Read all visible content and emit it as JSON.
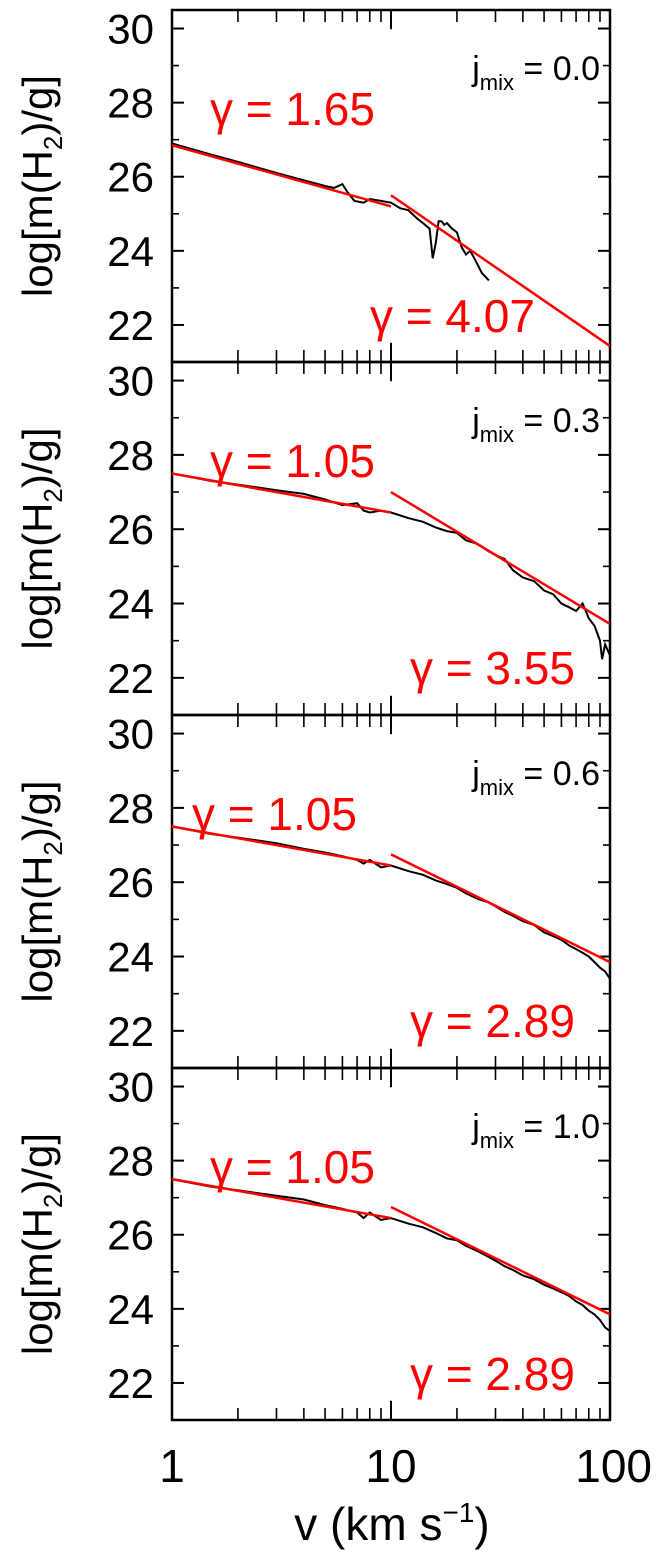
{
  "chart_data": {
    "type": "line",
    "xscale": "log",
    "xlim": [
      1,
      100
    ],
    "ylim": [
      21,
      30.5
    ],
    "xlabel": "v (km s",
    "xlabel_sup": "−1",
    "xlabel_end": ")",
    "x_ticks": [
      {
        "value": 1,
        "label": "1"
      },
      {
        "value": 10,
        "label": "10"
      },
      {
        "value": 100,
        "label": "100"
      }
    ],
    "y_ticks": [
      22,
      24,
      26,
      28,
      30
    ],
    "ylabel_parts": {
      "pre": "log[m(H",
      "sub": "2",
      "post": ")/g]"
    },
    "colors": {
      "data": "#000000",
      "fit": "#ff0000"
    },
    "panels": [
      {
        "jmix_label": "j",
        "jmix_sub": "mix",
        "jmix_value": " = 0.0",
        "fit_low": {
          "gamma_label": "γ = 1.65",
          "x": [
            1,
            10
          ],
          "y": [
            26.85,
            25.2
          ]
        },
        "fit_high": {
          "gamma_label": "γ = 4.07",
          "x": [
            10,
            100
          ],
          "y": [
            25.5,
            21.43
          ]
        },
        "series": [
          {
            "x": [
              1,
              1.5,
              2,
              3,
              4,
              5,
              5.5,
              6,
              6.3,
              6.8,
              7.5,
              8,
              9,
              10,
              11,
              12,
              13,
              14,
              15,
              15.5,
              16,
              16.5,
              17,
              17.5,
              18,
              19,
              20,
              21,
              22,
              23,
              24,
              25,
              26,
              27,
              28
            ],
            "y": [
              26.9,
              26.6,
              26.4,
              26.1,
              25.9,
              25.75,
              25.7,
              25.8,
              25.6,
              25.35,
              25.3,
              25.4,
              25.35,
              25.3,
              25.15,
              25.1,
              24.9,
              24.75,
              24.6,
              23.8,
              24.2,
              24.8,
              24.8,
              24.7,
              24.75,
              24.6,
              24.5,
              24.1,
              23.9,
              24.0,
              23.8,
              23.6,
              23.4,
              23.3,
              23.2
            ]
          }
        ]
      },
      {
        "jmix_label": "j",
        "jmix_sub": "mix",
        "jmix_value": " = 0.3",
        "fit_low": {
          "gamma_label": "γ = 1.05",
          "x": [
            1,
            10
          ],
          "y": [
            27.5,
            26.45
          ]
        },
        "fit_high": {
          "gamma_label": "γ = 3.55",
          "x": [
            10,
            100
          ],
          "y": [
            27.0,
            23.45
          ]
        },
        "series": [
          {
            "x": [
              1,
              1.5,
              2,
              3,
              4,
              5,
              6,
              7,
              7.5,
              8,
              9,
              10,
              12,
              14,
              16,
              18,
              20,
              22,
              25,
              28,
              30,
              33,
              36,
              40,
              45,
              50,
              55,
              60,
              65,
              70,
              75,
              80,
              85,
              90,
              92,
              95,
              100
            ],
            "y": [
              27.5,
              27.3,
              27.2,
              27.05,
              26.95,
              26.8,
              26.65,
              26.7,
              26.5,
              26.45,
              26.5,
              26.45,
              26.3,
              26.2,
              26.05,
              25.95,
              25.9,
              25.7,
              25.6,
              25.4,
              25.3,
              25.2,
              24.9,
              24.7,
              24.6,
              24.35,
              24.25,
              24.0,
              23.9,
              23.8,
              24.0,
              23.6,
              23.4,
              23.0,
              22.5,
              22.9,
              22.6
            ]
          }
        ]
      },
      {
        "jmix_label": "j",
        "jmix_sub": "mix",
        "jmix_value": " = 0.6",
        "fit_low": {
          "gamma_label": "γ = 1.05",
          "x": [
            1,
            10
          ],
          "y": [
            27.5,
            26.45
          ]
        },
        "fit_high": {
          "gamma_label": "γ = 2.89",
          "x": [
            10,
            100
          ],
          "y": [
            26.75,
            23.85
          ]
        },
        "series": [
          {
            "x": [
              1,
              1.5,
              2,
              3,
              4,
              5,
              6,
              7,
              7.5,
              8,
              9,
              10,
              12,
              14,
              16,
              18,
              20,
              22,
              25,
              28,
              30,
              33,
              36,
              40,
              45,
              50,
              55,
              60,
              65,
              70,
              75,
              80,
              85,
              90,
              95,
              100
            ],
            "y": [
              27.5,
              27.3,
              27.2,
              27.05,
              26.9,
              26.8,
              26.7,
              26.6,
              26.5,
              26.6,
              26.4,
              26.45,
              26.3,
              26.2,
              26.05,
              25.95,
              25.85,
              25.7,
              25.55,
              25.45,
              25.35,
              25.2,
              25.1,
              24.95,
              24.85,
              24.65,
              24.55,
              24.45,
              24.3,
              24.2,
              24.1,
              24.0,
              23.85,
              23.7,
              23.6,
              23.4
            ]
          }
        ]
      },
      {
        "jmix_label": "j",
        "jmix_sub": "mix",
        "jmix_value": " = 1.0",
        "fit_low": {
          "gamma_label": "γ = 1.05",
          "x": [
            1,
            10
          ],
          "y": [
            27.5,
            26.45
          ]
        },
        "fit_high": {
          "gamma_label": "γ = 2.89",
          "x": [
            10,
            100
          ],
          "y": [
            26.75,
            23.85
          ]
        },
        "series": [
          {
            "x": [
              1,
              1.5,
              2,
              3,
              4,
              5,
              6,
              7,
              7.5,
              8,
              9,
              10,
              12,
              14,
              16,
              18,
              20,
              22,
              25,
              28,
              30,
              33,
              36,
              40,
              45,
              50,
              55,
              60,
              65,
              70,
              75,
              80,
              85,
              90,
              95,
              100
            ],
            "y": [
              27.5,
              27.3,
              27.2,
              27.05,
              26.95,
              26.8,
              26.7,
              26.6,
              26.45,
              26.6,
              26.4,
              26.45,
              26.3,
              26.2,
              26.05,
              25.9,
              25.85,
              25.7,
              25.55,
              25.4,
              25.3,
              25.15,
              25.05,
              24.9,
              24.8,
              24.65,
              24.55,
              24.45,
              24.35,
              24.2,
              24.1,
              23.95,
              23.85,
              23.7,
              23.5,
              23.4
            ]
          }
        ]
      }
    ]
  }
}
